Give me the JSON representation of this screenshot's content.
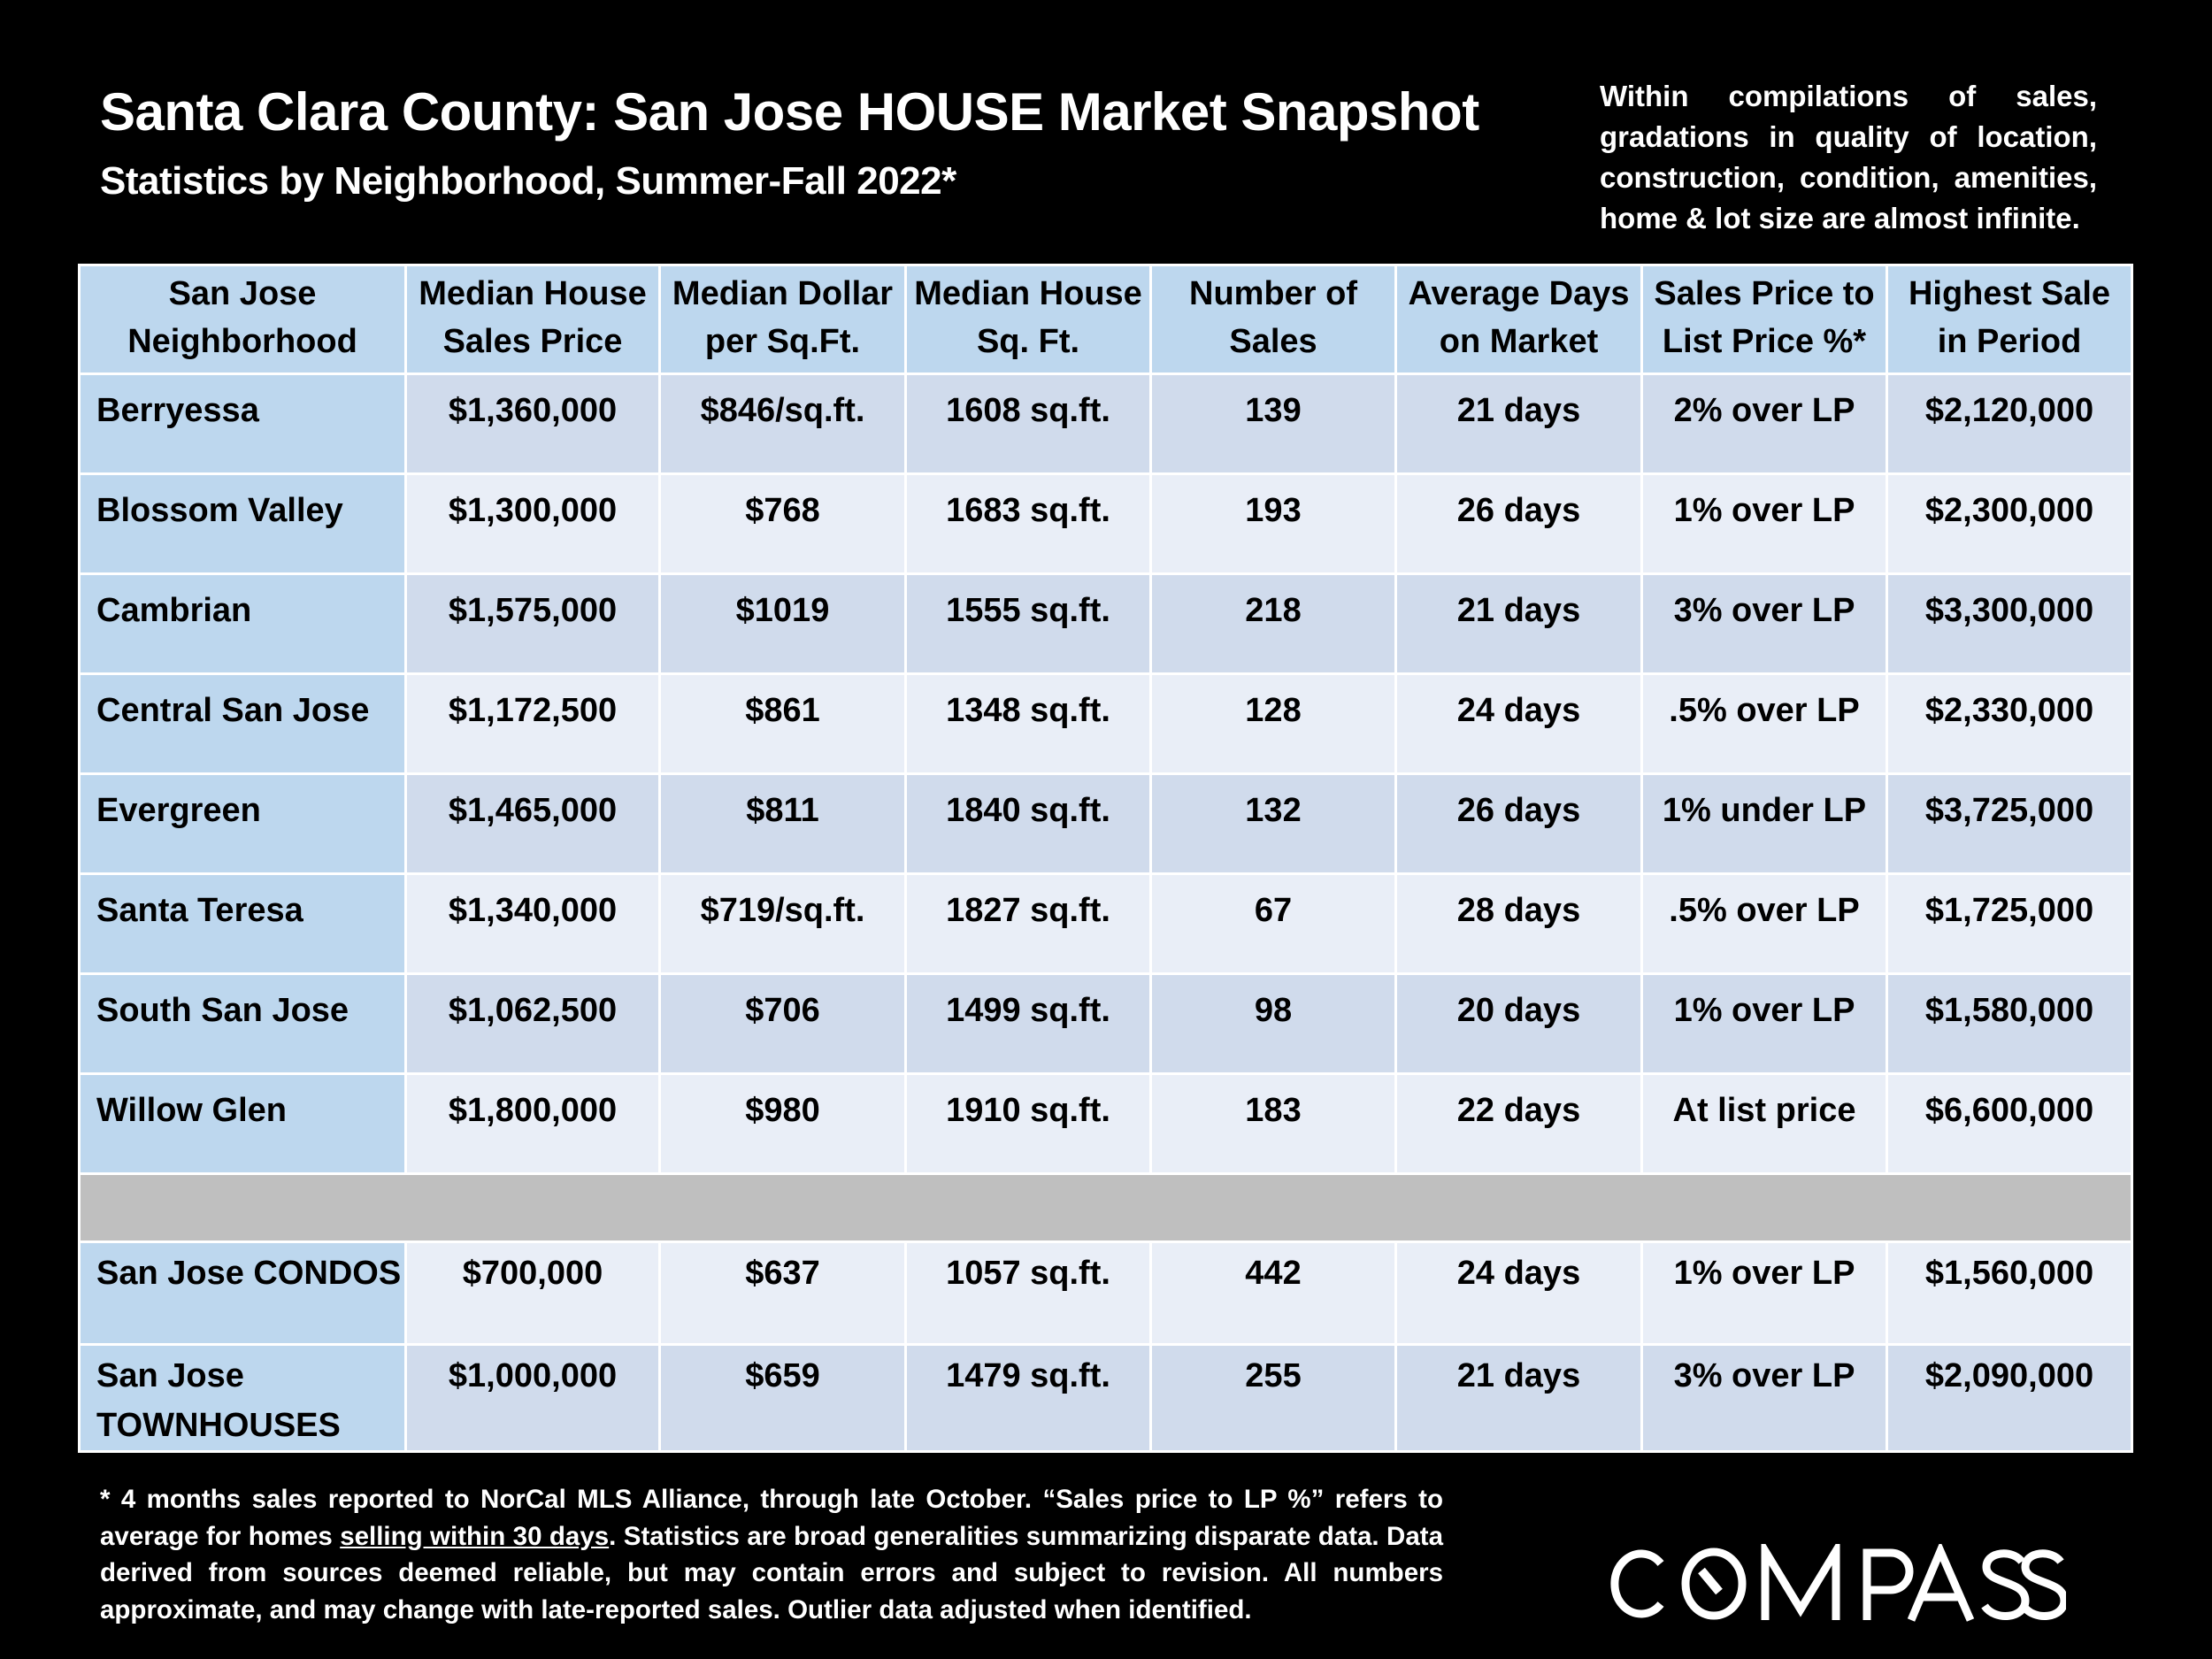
{
  "header": {
    "title": "Santa Clara County: San Jose HOUSE Market Snapshot",
    "subtitle": "Statistics by Neighborhood, Summer-Fall 2022*",
    "note": "Within compilations of sales, gradations in quality of location, construction, condition, amenities, home & lot size are almost infinite."
  },
  "table": {
    "columns": [
      [
        "San Jose",
        "Neighborhood"
      ],
      [
        "Median House",
        "Sales Price"
      ],
      [
        "Median Dollar",
        "per Sq.Ft."
      ],
      [
        "Median House",
        "Sq. Ft."
      ],
      [
        "Number of",
        "Sales"
      ],
      [
        "Average Days",
        "on Market"
      ],
      [
        "Sales Price to",
        "List Price %*"
      ],
      [
        "Highest Sale",
        "in Period"
      ]
    ],
    "rows": [
      [
        "Berryessa",
        "$1,360,000",
        "$846/sq.ft.",
        "1608 sq.ft.",
        "139",
        "21 days",
        "2% over LP",
        "$2,120,000"
      ],
      [
        "Blossom Valley",
        "$1,300,000",
        "$768",
        "1683 sq.ft.",
        "193",
        "26 days",
        "1% over LP",
        "$2,300,000"
      ],
      [
        "Cambrian",
        "$1,575,000",
        "$1019",
        "1555 sq.ft.",
        "218",
        "21 days",
        "3% over LP",
        "$3,300,000"
      ],
      [
        "Central San Jose",
        "$1,172,500",
        "$861",
        "1348 sq.ft.",
        "128",
        "24 days",
        ".5% over LP",
        "$2,330,000"
      ],
      [
        "Evergreen",
        "$1,465,000",
        "$811",
        "1840 sq.ft.",
        "132",
        "26 days",
        "1% under LP",
        "$3,725,000"
      ],
      [
        "Santa Teresa",
        "$1,340,000",
        "$719/sq.ft.",
        "1827 sq.ft.",
        "67",
        "28 days",
        ".5% over LP",
        "$1,725,000"
      ],
      [
        "South San Jose",
        "$1,062,500",
        "$706",
        "1499 sq.ft.",
        "98",
        "20 days",
        "1% over LP",
        "$1,580,000"
      ],
      [
        "Willow Glen",
        "$1,800,000",
        "$980",
        "1910 sq.ft.",
        "183",
        "22 days",
        "At list price",
        "$6,600,000"
      ]
    ],
    "other_rows": [
      [
        "San Jose CONDOS",
        "$700,000",
        "$637",
        "1057 sq.ft.",
        "442",
        "24 days",
        "1% over LP",
        "$1,560,000"
      ],
      [
        "San Jose TOWNHOUSES",
        "$1,000,000",
        "$659",
        "1479 sq.ft.",
        "255",
        "21 days",
        "3% over LP",
        "$2,090,000"
      ]
    ]
  },
  "footnote": {
    "part1": "* 4 months sales reported to NorCal MLS Alliance, through late October. “Sales price to LP %” refers to average for homes ",
    "underlined": "selling within 30 days",
    "part2": ". Statistics are broad generalities summarizing disparate data. Data derived from sources deemed reliable, but may contain errors and subject to revision. All numbers approximate, and may change with late-reported sales. Outlier data adjusted when identified."
  },
  "logo": {
    "text": "COMPASS"
  }
}
